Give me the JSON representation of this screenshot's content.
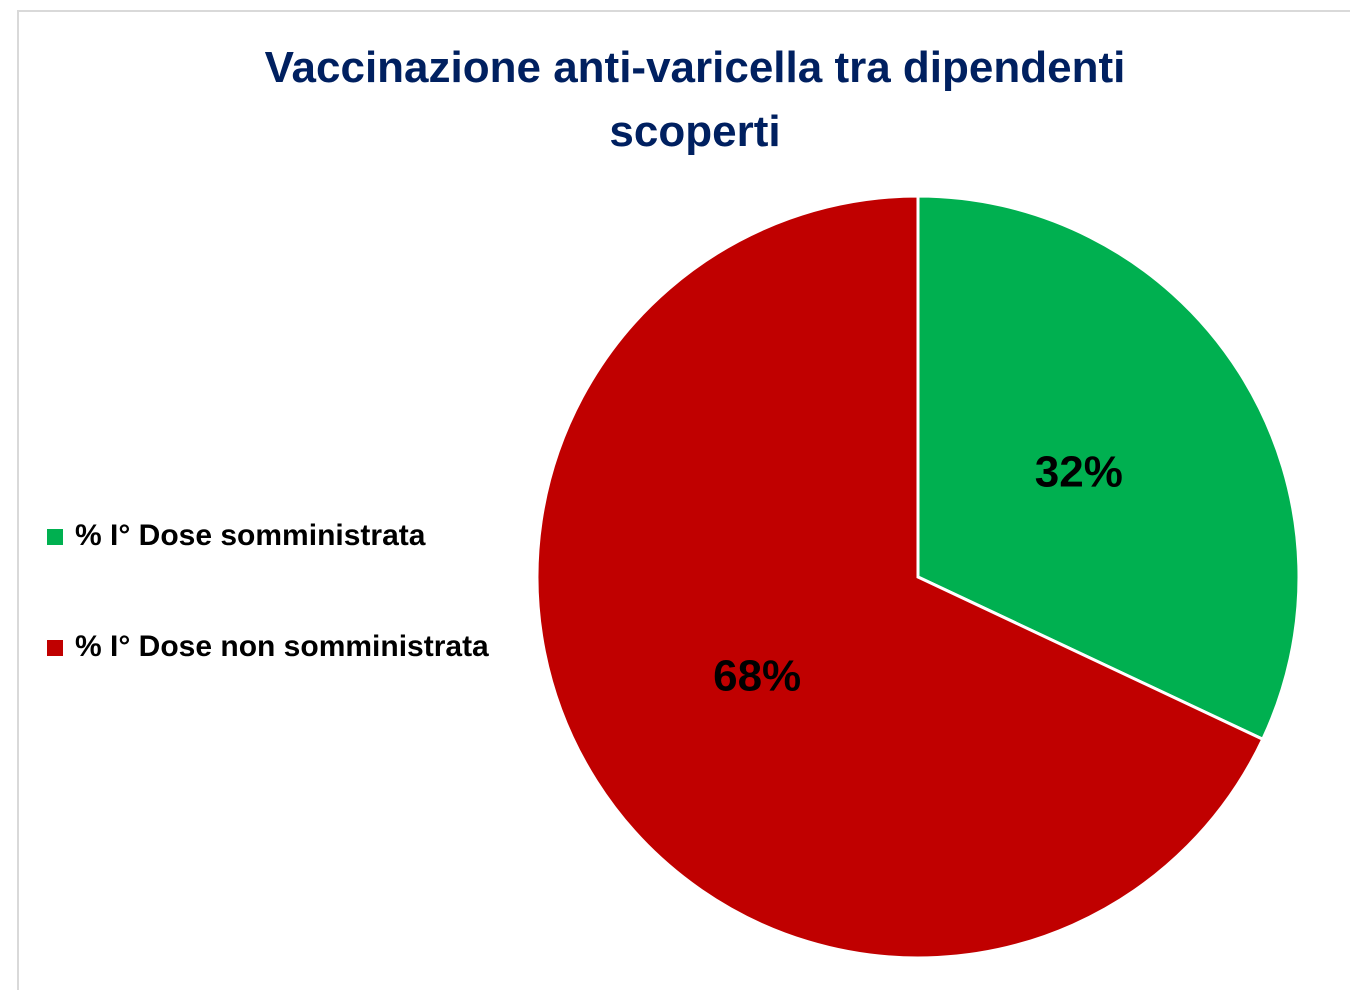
{
  "chart_data": {
    "type": "pie",
    "title": "Vaccinazione anti-varicella tra dipendenti scoperti",
    "categories": [
      "% I° Dose somministrata",
      "% I° Dose non somministrata"
    ],
    "values": [
      32,
      68
    ],
    "value_labels": [
      "32%",
      "68%"
    ],
    "colors": [
      "#00b050",
      "#c00000"
    ],
    "legend": "left"
  }
}
